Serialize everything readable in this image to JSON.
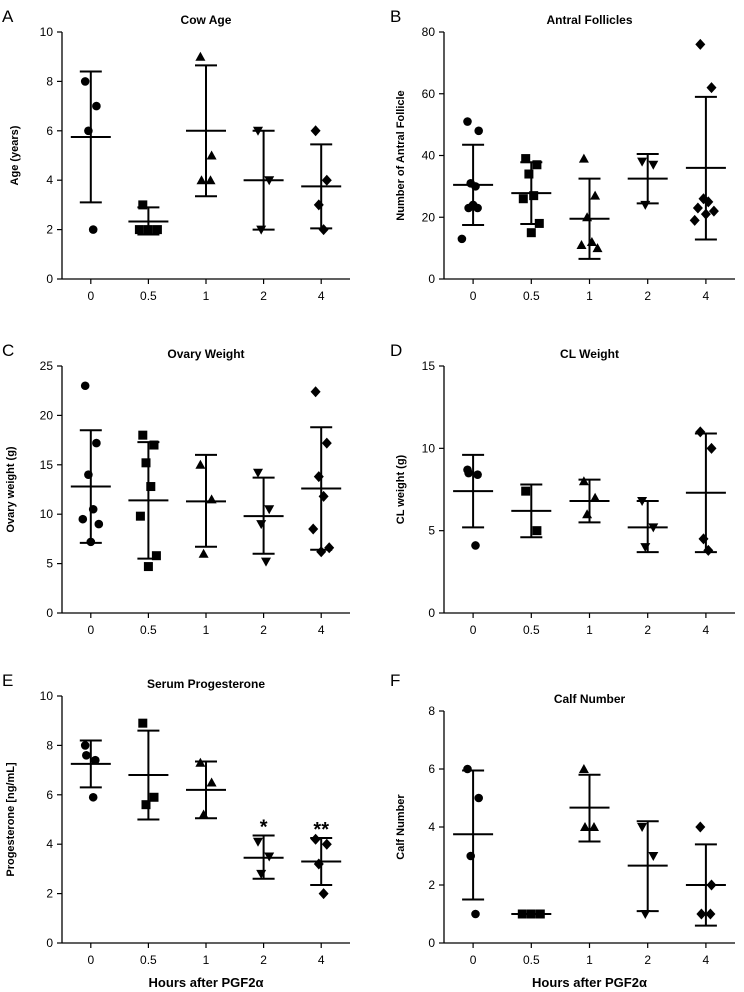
{
  "chart_data": [
    {
      "type": "scatter",
      "panel_label": "A",
      "title": "Cow Age",
      "ylabel": "Age (years)",
      "xlabel": "",
      "ylim": [
        0,
        10
      ],
      "yticks": [
        "0",
        "2",
        "4",
        "6",
        "8",
        "10"
      ],
      "categories": [
        "0",
        "0.5",
        "1",
        "2",
        "4"
      ],
      "groups": [
        {
          "points": [
            8,
            7,
            6,
            2
          ],
          "mean": 5.75,
          "sd_low": 3.1,
          "sd_high": 8.4
        },
        {
          "points": [
            3,
            2,
            2,
            2
          ],
          "mean": 2.33,
          "sd_low": 1.8,
          "sd_high": 2.9
        },
        {
          "points": [
            9,
            5,
            4,
            4
          ],
          "mean": 6.0,
          "sd_low": 3.35,
          "sd_high": 8.65
        },
        {
          "points": [
            6,
            4,
            2
          ],
          "mean": 4.0,
          "sd_low": 2.0,
          "sd_high": 6.0
        },
        {
          "points": [
            6,
            4,
            3,
            2
          ],
          "mean": 3.75,
          "sd_low": 2.05,
          "sd_high": 5.45
        }
      ],
      "annotations": []
    },
    {
      "type": "scatter",
      "panel_label": "B",
      "title": "Antral Follicles",
      "ylabel": "Number of Antral Follicle",
      "xlabel": "",
      "ylim": [
        0,
        80
      ],
      "yticks": [
        "0",
        "20",
        "40",
        "60",
        "80"
      ],
      "categories": [
        "0",
        "0.5",
        "1",
        "2",
        "4"
      ],
      "groups": [
        {
          "points": [
            51,
            48,
            31,
            30,
            23,
            23,
            24,
            13
          ],
          "mean": 30.5,
          "sd_low": 17.5,
          "sd_high": 43.5
        },
        {
          "points": [
            39,
            37,
            34,
            27,
            26,
            18,
            15
          ],
          "mean": 27.8,
          "sd_low": 17.8,
          "sd_high": 37.8
        },
        {
          "points": [
            39,
            27,
            20,
            12,
            11,
            10
          ],
          "mean": 19.5,
          "sd_low": 6.5,
          "sd_high": 32.5
        },
        {
          "points": [
            38,
            37,
            24
          ],
          "mean": 32.5,
          "sd_low": 24.5,
          "sd_high": 40.5
        },
        {
          "points": [
            76,
            62,
            26,
            25,
            23,
            22,
            21,
            19
          ],
          "mean": 36.0,
          "sd_low": 12.8,
          "sd_high": 59.0
        }
      ],
      "annotations": []
    },
    {
      "type": "scatter",
      "panel_label": "C",
      "title": "Ovary Weight",
      "ylabel": "Ovary weight (g)",
      "xlabel": "",
      "ylim": [
        0,
        25
      ],
      "yticks": [
        "0",
        "5",
        "10",
        "15",
        "20",
        "25"
      ],
      "categories": [
        "0",
        "0.5",
        "1",
        "2",
        "4"
      ],
      "groups": [
        {
          "points": [
            23,
            17.2,
            14,
            10.5,
            9.5,
            9.0,
            7.2
          ],
          "mean": 12.8,
          "sd_low": 7.1,
          "sd_high": 18.5
        },
        {
          "points": [
            18,
            17,
            15.2,
            12.8,
            9.8,
            5.8,
            4.7
          ],
          "mean": 11.4,
          "sd_low": 5.5,
          "sd_high": 17.3
        },
        {
          "points": [
            15,
            11.5,
            6
          ],
          "mean": 11.3,
          "sd_low": 6.7,
          "sd_high": 16.0
        },
        {
          "points": [
            14.2,
            10.5,
            9.0,
            5.2
          ],
          "mean": 9.8,
          "sd_low": 6.0,
          "sd_high": 13.7
        },
        {
          "points": [
            22.4,
            17.2,
            13.8,
            11.8,
            8.5,
            6.6,
            6.2
          ],
          "mean": 12.6,
          "sd_low": 6.4,
          "sd_high": 18.8
        }
      ],
      "annotations": []
    },
    {
      "type": "scatter",
      "panel_label": "D",
      "title": "CL Weight",
      "ylabel": "CL weight (g)",
      "xlabel": "",
      "ylim": [
        0,
        15
      ],
      "yticks": [
        "0",
        "5",
        "10",
        "15"
      ],
      "categories": [
        "0",
        "0.5",
        "1",
        "2",
        "4"
      ],
      "groups": [
        {
          "points": [
            8.7,
            8.5,
            8.4,
            4.1
          ],
          "mean": 7.4,
          "sd_low": 5.2,
          "sd_high": 9.6
        },
        {
          "points": [
            7.4,
            5.0
          ],
          "mean": 6.2,
          "sd_low": 4.6,
          "sd_high": 7.8
        },
        {
          "points": [
            8.0,
            7.0,
            6.0
          ],
          "mean": 6.8,
          "sd_low": 5.5,
          "sd_high": 8.1
        },
        {
          "points": [
            6.8,
            5.2,
            4.0
          ],
          "mean": 5.2,
          "sd_low": 3.7,
          "sd_high": 6.8
        },
        {
          "points": [
            11.0,
            10.0,
            4.5,
            3.8
          ],
          "mean": 7.3,
          "sd_low": 3.7,
          "sd_high": 10.9
        }
      ],
      "annotations": []
    },
    {
      "type": "scatter",
      "panel_label": "E",
      "title": "Serum Progesterone",
      "ylabel": "Progesterone [ng/mL]",
      "xlabel": "Hours after  PGF2α",
      "ylim": [
        0,
        10
      ],
      "yticks": [
        "0",
        "2",
        "4",
        "6",
        "8",
        "10"
      ],
      "categories": [
        "0",
        "0.5",
        "1",
        "2",
        "4"
      ],
      "groups": [
        {
          "points": [
            8.0,
            7.6,
            7.4,
            5.9
          ],
          "mean": 7.25,
          "sd_low": 6.3,
          "sd_high": 8.2
        },
        {
          "points": [
            8.9,
            5.9,
            5.6
          ],
          "mean": 6.8,
          "sd_low": 5.0,
          "sd_high": 8.6
        },
        {
          "points": [
            7.3,
            6.5,
            5.2
          ],
          "mean": 6.2,
          "sd_low": 5.05,
          "sd_high": 7.35
        },
        {
          "points": [
            4.1,
            3.5,
            2.8
          ],
          "mean": 3.45,
          "sd_low": 2.6,
          "sd_high": 4.35
        },
        {
          "points": [
            4.2,
            4.0,
            3.2,
            2.0
          ],
          "mean": 3.3,
          "sd_low": 2.35,
          "sd_high": 4.25
        }
      ],
      "annotations": [
        {
          "category": "2",
          "text": "*"
        },
        {
          "category": "4",
          "text": "**"
        }
      ]
    },
    {
      "type": "scatter",
      "panel_label": "F",
      "title": "Calf Number",
      "ylabel": "Calf Number",
      "xlabel": "Hours after  PGF2α",
      "ylim": [
        0,
        8
      ],
      "yticks": [
        "0",
        "2",
        "4",
        "6",
        "8"
      ],
      "categories": [
        "0",
        "0.5",
        "1",
        "2",
        "4"
      ],
      "groups": [
        {
          "points": [
            6,
            5,
            3,
            1
          ],
          "mean": 3.75,
          "sd_low": 1.5,
          "sd_high": 5.95
        },
        {
          "points": [
            1,
            1,
            1
          ],
          "mean": 1.0,
          "sd_low": 1.0,
          "sd_high": 1.0
        },
        {
          "points": [
            6,
            4,
            4
          ],
          "mean": 4.67,
          "sd_low": 3.5,
          "sd_high": 5.8
        },
        {
          "points": [
            4,
            3,
            1
          ],
          "mean": 2.67,
          "sd_low": 1.1,
          "sd_high": 4.2
        },
        {
          "points": [
            4,
            2,
            1,
            1
          ],
          "mean": 2.0,
          "sd_low": 0.6,
          "sd_high": 3.4
        }
      ],
      "annotations": []
    }
  ]
}
